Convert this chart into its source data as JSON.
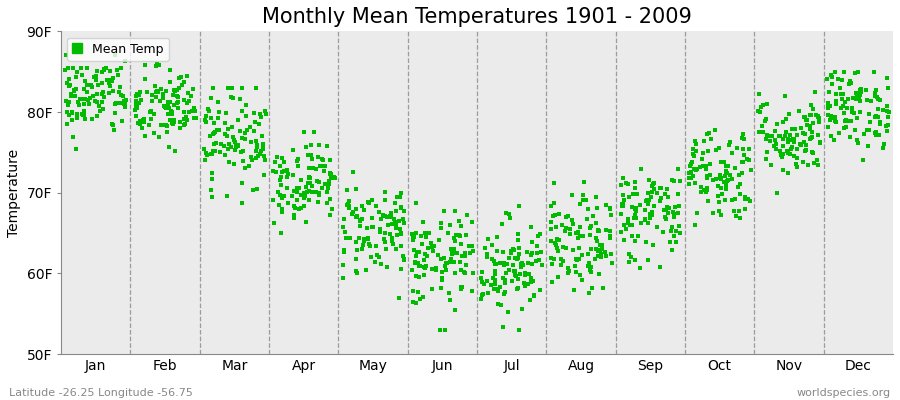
{
  "title": "Monthly Mean Temperatures 1901 - 2009",
  "ylabel": "Temperature",
  "xlabel_labels": [
    "Jan",
    "Feb",
    "Mar",
    "Apr",
    "May",
    "Jun",
    "Jul",
    "Aug",
    "Sep",
    "Oct",
    "Nov",
    "Dec"
  ],
  "ylim": [
    50,
    90
  ],
  "yticks": [
    50,
    60,
    70,
    80,
    90
  ],
  "ytick_labels": [
    "50F",
    "60F",
    "70F",
    "80F",
    "90F"
  ],
  "dot_color": "#00BB00",
  "background_color": "#EBEBEB",
  "figure_bg": "#FFFFFF",
  "legend_label": "Mean Temp",
  "footer_left": "Latitude -26.25 Longitude -56.75",
  "footer_right": "worldspecies.org",
  "title_fontsize": 15,
  "axis_fontsize": 10,
  "monthly_means": [
    82.0,
    80.5,
    77.0,
    71.5,
    65.5,
    61.5,
    61.0,
    63.5,
    67.5,
    72.5,
    77.0,
    80.5
  ],
  "monthly_stds": [
    2.5,
    2.5,
    3.0,
    2.5,
    3.0,
    3.0,
    3.0,
    3.0,
    3.0,
    3.0,
    2.5,
    2.5
  ],
  "monthly_mins": [
    75.0,
    74.0,
    66.0,
    65.0,
    57.0,
    53.0,
    53.0,
    56.0,
    60.0,
    64.0,
    70.0,
    74.0
  ],
  "monthly_maxs": [
    87.0,
    86.0,
    83.0,
    77.5,
    73.0,
    71.0,
    71.0,
    71.5,
    75.0,
    80.0,
    84.0,
    85.0
  ],
  "n_years": 109,
  "seed": 42
}
